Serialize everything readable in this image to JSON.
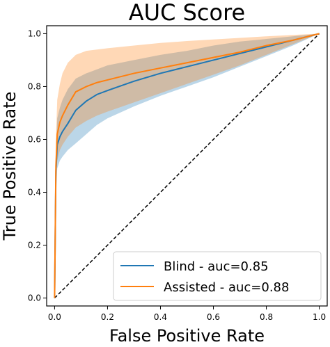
{
  "chart_data": {
    "type": "line",
    "title": "AUC Score",
    "xlabel": "False Positive Rate",
    "ylabel": "True Positive Rate",
    "xlim": [
      -0.03,
      1.03
    ],
    "ylim": [
      -0.03,
      1.03
    ],
    "xticks": [
      "0.0",
      "0.2",
      "0.4",
      "0.6",
      "0.8",
      "1.0"
    ],
    "yticks": [
      "0.0",
      "0.2",
      "0.4",
      "0.6",
      "0.8",
      "1.0"
    ],
    "legend_position": "lower-right",
    "grid": false,
    "diagonal": {
      "style": "dashed",
      "color": "#000000"
    },
    "series": [
      {
        "name": "Blind - auc=0.85",
        "color": "#1f77b4",
        "x": [
          0,
          0.005,
          0.01,
          0.02,
          0.03,
          0.05,
          0.08,
          0.12,
          0.16,
          0.2,
          0.3,
          0.4,
          0.5,
          0.6,
          0.7,
          0.8,
          0.9,
          1.0
        ],
        "y": [
          0,
          0.48,
          0.58,
          0.61,
          0.63,
          0.66,
          0.71,
          0.745,
          0.77,
          0.785,
          0.82,
          0.85,
          0.875,
          0.9,
          0.925,
          0.95,
          0.975,
          1.0
        ],
        "lower": [
          0,
          0.4,
          0.49,
          0.52,
          0.535,
          0.56,
          0.585,
          0.62,
          0.655,
          0.68,
          0.725,
          0.765,
          0.8,
          0.835,
          0.875,
          0.915,
          0.955,
          1.0
        ],
        "upper": [
          0,
          0.55,
          0.68,
          0.72,
          0.75,
          0.79,
          0.83,
          0.85,
          0.865,
          0.88,
          0.9,
          0.92,
          0.935,
          0.955,
          0.97,
          0.98,
          0.99,
          1.0
        ]
      },
      {
        "name": "Assisted - auc=0.88",
        "color": "#ff7f0e",
        "x": [
          0,
          0.005,
          0.01,
          0.02,
          0.03,
          0.05,
          0.08,
          0.12,
          0.16,
          0.2,
          0.3,
          0.4,
          0.5,
          0.6,
          0.7,
          0.8,
          0.9,
          1.0
        ],
        "y": [
          0,
          0.5,
          0.62,
          0.665,
          0.69,
          0.73,
          0.78,
          0.8,
          0.815,
          0.825,
          0.85,
          0.87,
          0.89,
          0.91,
          0.93,
          0.955,
          0.975,
          1.0
        ],
        "lower": [
          0,
          0.42,
          0.52,
          0.56,
          0.58,
          0.61,
          0.645,
          0.67,
          0.69,
          0.705,
          0.74,
          0.775,
          0.81,
          0.845,
          0.88,
          0.92,
          0.96,
          1.0
        ],
        "upper": [
          0,
          0.6,
          0.75,
          0.81,
          0.85,
          0.89,
          0.92,
          0.935,
          0.94,
          0.945,
          0.955,
          0.965,
          0.972,
          0.978,
          0.984,
          0.99,
          0.995,
          1.0
        ]
      }
    ]
  }
}
